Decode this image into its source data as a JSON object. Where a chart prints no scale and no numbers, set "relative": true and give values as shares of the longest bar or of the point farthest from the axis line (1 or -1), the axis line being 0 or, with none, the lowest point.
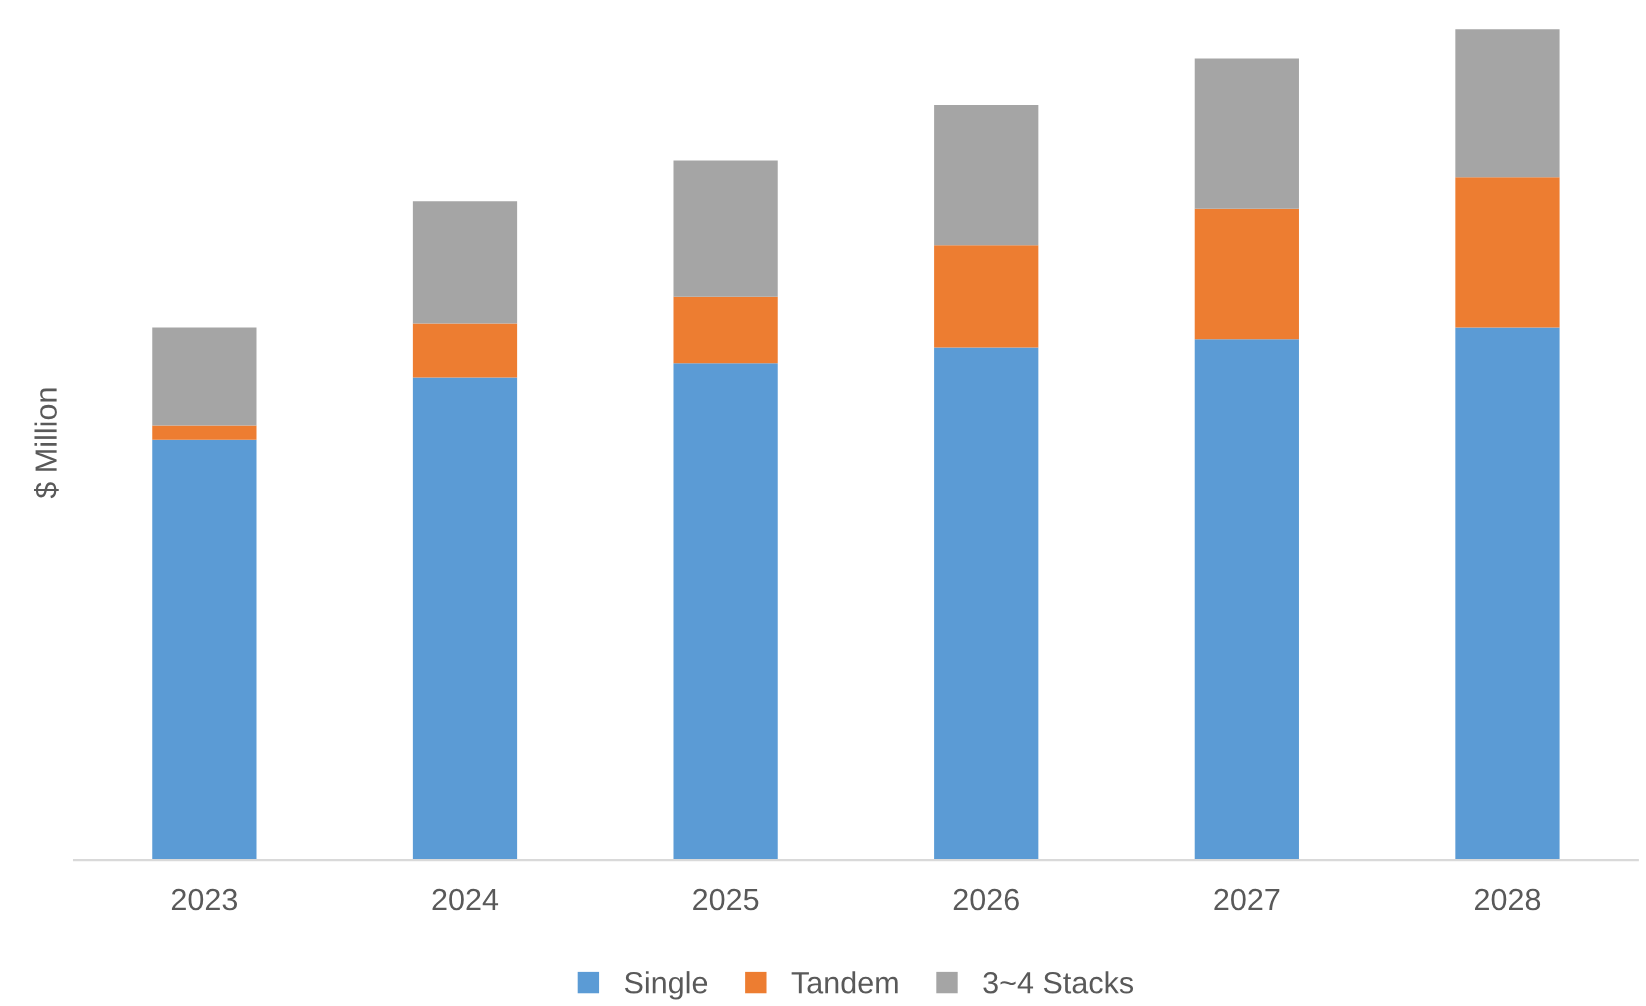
{
  "chart_data": {
    "type": "bar",
    "stacked": true,
    "relative": true,
    "ylabel": "$ Million",
    "categories": [
      "2023",
      "2024",
      "2025",
      "2026",
      "2027",
      "2028"
    ],
    "series": [
      {
        "name": "Single",
        "color": "#5b9bd5",
        "values": [
          0.506,
          0.581,
          0.598,
          0.617,
          0.627,
          0.641
        ]
      },
      {
        "name": "Tandem",
        "color": "#ed7d31",
        "values": [
          0.017,
          0.065,
          0.08,
          0.123,
          0.157,
          0.181
        ]
      },
      {
        "name": "3~4 Stacks",
        "color": "#a5a5a5",
        "values": [
          0.118,
          0.147,
          0.164,
          0.169,
          0.181,
          0.178
        ]
      }
    ],
    "legend": "bottom",
    "grid": false
  }
}
